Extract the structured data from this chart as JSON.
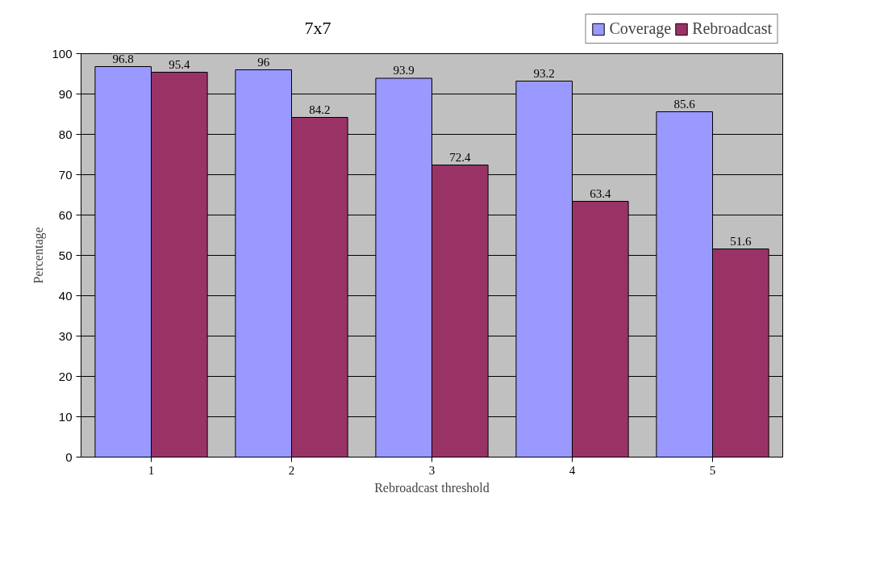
{
  "chart_data": {
    "type": "bar",
    "title": "7x7",
    "xlabel": "Rebroadcast threshold",
    "ylabel": "Percentage",
    "categories": [
      "1",
      "2",
      "3",
      "4",
      "5"
    ],
    "series": [
      {
        "name": "Coverage",
        "color": "#9999ff",
        "values": [
          96.8,
          96,
          93.9,
          93.2,
          85.6
        ]
      },
      {
        "name": "Rebroadcast",
        "color": "#993366",
        "values": [
          95.4,
          84.2,
          72.4,
          63.4,
          51.6
        ]
      }
    ],
    "ylim": [
      0,
      100
    ],
    "yticks": [
      0,
      10,
      20,
      30,
      40,
      50,
      60,
      70,
      80,
      90,
      100
    ],
    "grid": "y",
    "legend": "top right",
    "data_labels": true
  }
}
